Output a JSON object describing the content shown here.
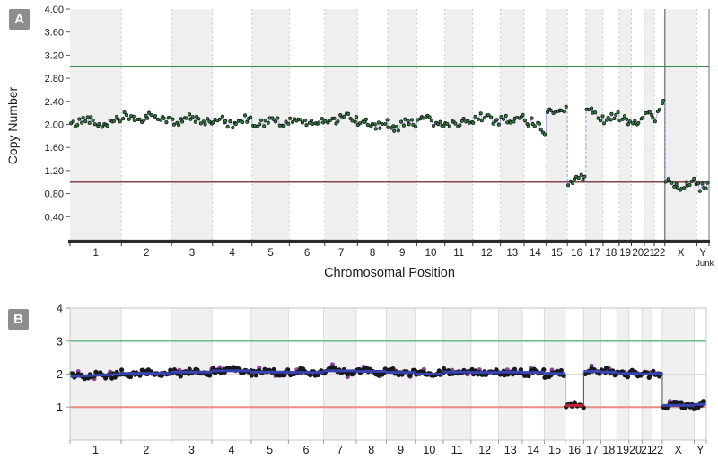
{
  "panel_a": {
    "badge": "A",
    "y_axis_label": "Copy Number",
    "x_axis_label": "Chromosomal Position",
    "colors": {
      "band": "#efefef",
      "band_boundary": "#cccccc",
      "axis": "#2b2b2b",
      "gain_line": "#3a8a4d",
      "loss_line": "#85454e",
      "point_fill": "#2f7d3f",
      "point_stroke": "#0d0d0d",
      "connector": "#9aa5d6",
      "xy_divider": "#8a8a8a",
      "right_border": "#9a9a9a"
    }
  },
  "panel_b": {
    "badge": "B",
    "colors": {
      "band": "#f0f0f0",
      "band_boundary": "#dcdcdc",
      "border": "#c4c4c4",
      "grid": "#dcdcdc",
      "gain_line": "#6fc08c",
      "loss_line": "#ec8b80",
      "segment_blue": "#3743b0",
      "segment_red": "#c4232e",
      "point_fill": "#17171f",
      "outlier_fill": "#8e3f9e",
      "connector": "#5a5a5a",
      "tick": "#9a9a9a"
    }
  },
  "chart_data": [
    {
      "panel": "A",
      "type": "scatter",
      "xlabel": "Chromosomal Position",
      "ylabel": "Copy Number",
      "ylim": [
        0,
        4.0
      ],
      "grid": "alternating chromosome bands, dashed boundaries",
      "y_ticks": [
        {
          "v": 4.0,
          "label": "4.00"
        },
        {
          "v": 3.6,
          "label": "3.60"
        },
        {
          "v": 3.2,
          "label": "3.20"
        },
        {
          "v": 2.8,
          "label": "2.80"
        },
        {
          "v": 2.4,
          "label": "2.40"
        },
        {
          "v": 2.0,
          "label": "2.00"
        },
        {
          "v": 1.6,
          "label": "1.60"
        },
        {
          "v": 1.2,
          "label": "1.20"
        },
        {
          "v": 0.8,
          "label": "0.80"
        },
        {
          "v": 0.4,
          "label": "0.40"
        }
      ],
      "reference_lines": [
        {
          "y": 3.0,
          "color": "#3a8a4d"
        },
        {
          "y": 1.0,
          "color": "#85454e"
        }
      ],
      "chromosomes": [
        {
          "name": "1",
          "length_mb": 249,
          "cn": 2.05
        },
        {
          "name": "2",
          "length_mb": 243,
          "cn": 2.12
        },
        {
          "name": "3",
          "length_mb": 198,
          "cn": 2.08
        },
        {
          "name": "4",
          "length_mb": 191,
          "cn": 2.05
        },
        {
          "name": "5",
          "length_mb": 181,
          "cn": 2.04
        },
        {
          "name": "6",
          "length_mb": 171,
          "cn": 2.05
        },
        {
          "name": "7",
          "length_mb": 159,
          "cn": 2.1
        },
        {
          "name": "8",
          "length_mb": 146,
          "cn": 2.02
        },
        {
          "name": "9",
          "length_mb": 141,
          "cn": 2.0
        },
        {
          "name": "10",
          "length_mb": 136,
          "cn": 2.04
        },
        {
          "name": "11",
          "length_mb": 135,
          "cn": 2.05
        },
        {
          "name": "12",
          "length_mb": 134,
          "cn": 2.08
        },
        {
          "name": "13",
          "length_mb": 115,
          "cn": 2.1
        },
        {
          "name": "14",
          "length_mb": 107,
          "cn": 2.05,
          "cn_end": 1.92
        },
        {
          "name": "15",
          "length_mb": 102,
          "cn": 2.18,
          "cn_end": 2.3
        },
        {
          "name": "16",
          "length_mb": 90,
          "cn": 1.05
        },
        {
          "name": "17",
          "length_mb": 83,
          "cn": 2.28,
          "cn_end": 2.12
        },
        {
          "name": "18",
          "length_mb": 78,
          "cn": 2.1
        },
        {
          "name": "19",
          "length_mb": 59,
          "cn": 2.08
        },
        {
          "name": "20",
          "length_mb": 63,
          "cn": 2.1
        },
        {
          "name": "21",
          "length_mb": 48,
          "cn": 2.12
        },
        {
          "name": "22",
          "length_mb": 51,
          "cn": 2.15,
          "cn_end": 2.4
        },
        {
          "name": "X",
          "length_mb": 155,
          "cn": 0.97
        },
        {
          "name": "Y",
          "length_mb": 59,
          "cn": 0.95,
          "sub_label": "Junk"
        }
      ]
    },
    {
      "panel": "B",
      "type": "scatter",
      "xlabel": "",
      "ylabel": "",
      "ylim": [
        0,
        4
      ],
      "grid": "alternating chromosome bands, light gridlines at 1,2,3",
      "y_ticks": [
        {
          "v": 4,
          "label": "4"
        },
        {
          "v": 3,
          "label": "3"
        },
        {
          "v": 2,
          "label": "2"
        },
        {
          "v": 1,
          "label": "1"
        }
      ],
      "reference_lines": [
        {
          "y": 3,
          "color": "#6fc08c"
        },
        {
          "y": 1,
          "color": "#ec8b80"
        }
      ],
      "chromosomes": [
        {
          "name": "1",
          "length_mb": 249,
          "cn": 1.93,
          "cn_end": 2.0
        },
        {
          "name": "2",
          "length_mb": 243,
          "cn": 2.02
        },
        {
          "name": "3",
          "length_mb": 198,
          "cn": 2.06
        },
        {
          "name": "4",
          "length_mb": 191,
          "cn": 2.1
        },
        {
          "name": "5",
          "length_mb": 181,
          "cn": 2.06
        },
        {
          "name": "6",
          "length_mb": 171,
          "cn": 2.05
        },
        {
          "name": "7",
          "length_mb": 159,
          "cn": 2.1
        },
        {
          "name": "8",
          "length_mb": 146,
          "cn": 2.08
        },
        {
          "name": "9",
          "length_mb": 141,
          "cn": 2.05
        },
        {
          "name": "10",
          "length_mb": 136,
          "cn": 2.0
        },
        {
          "name": "11",
          "length_mb": 135,
          "cn": 2.06
        },
        {
          "name": "12",
          "length_mb": 134,
          "cn": 2.05
        },
        {
          "name": "13",
          "length_mb": 115,
          "cn": 2.06
        },
        {
          "name": "14",
          "length_mb": 107,
          "cn": 2.05
        },
        {
          "name": "15",
          "length_mb": 102,
          "cn": 2.02
        },
        {
          "name": "16",
          "length_mb": 90,
          "cn": 1.05,
          "segment_color": "red"
        },
        {
          "name": "17",
          "length_mb": 83,
          "cn": 2.08
        },
        {
          "name": "18",
          "length_mb": 78,
          "cn": 2.06
        },
        {
          "name": "19",
          "length_mb": 59,
          "cn": 2.02
        },
        {
          "name": "20",
          "length_mb": 63,
          "cn": 2.02
        },
        {
          "name": "21",
          "length_mb": 48,
          "cn": 2.0
        },
        {
          "name": "22",
          "length_mb": 51,
          "cn": 2.02
        },
        {
          "name": "X",
          "length_mb": 155,
          "cn": 1.05
        },
        {
          "name": "Y",
          "length_mb": 59,
          "cn": 1.08
        }
      ]
    }
  ]
}
